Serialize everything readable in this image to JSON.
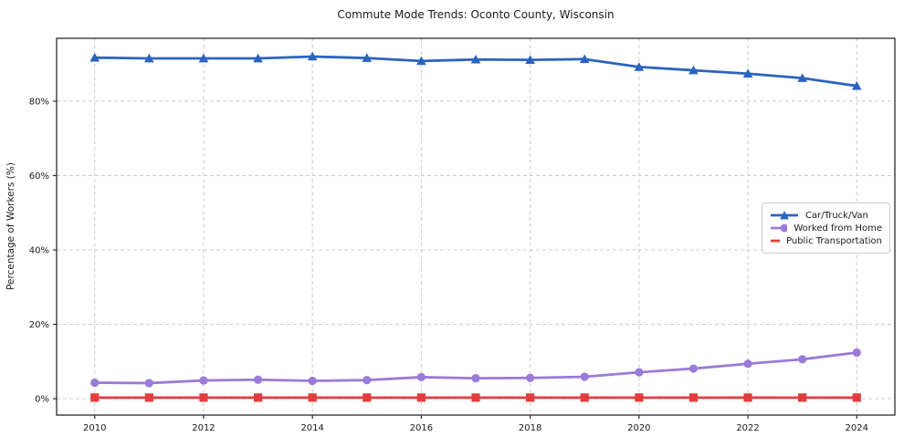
{
  "chart_data": {
    "type": "line",
    "title": "Commute Mode Trends: Oconto County, Wisconsin",
    "xlabel": "",
    "ylabel": "Percentage of Workers (%)",
    "x": [
      2010,
      2011,
      2012,
      2013,
      2014,
      2015,
      2016,
      2017,
      2018,
      2019,
      2020,
      2021,
      2022,
      2023,
      2024
    ],
    "series": [
      {
        "name": "Car/Truck/Van",
        "marker": "triangle-up",
        "color": "#2b63c1",
        "values": [
          91.7,
          91.5,
          91.5,
          91.5,
          92.0,
          91.6,
          90.8,
          91.2,
          91.1,
          91.3,
          89.2,
          88.3,
          87.4,
          86.2,
          84.1
        ]
      },
      {
        "name": "Worked from Home",
        "marker": "circle",
        "color": "#9a7bd8",
        "values": [
          4.3,
          4.2,
          4.9,
          5.1,
          4.8,
          5.0,
          5.8,
          5.5,
          5.6,
          5.9,
          7.1,
          8.1,
          9.4,
          10.6,
          12.4
        ]
      },
      {
        "name": "Public Transportation",
        "marker": "square",
        "color": "#e23d3d",
        "values": [
          0.3,
          0.3,
          0.3,
          0.3,
          0.3,
          0.3,
          0.3,
          0.3,
          0.3,
          0.3,
          0.3,
          0.3,
          0.3,
          0.3,
          0.3
        ]
      }
    ],
    "xticks": [
      2010,
      2012,
      2014,
      2016,
      2018,
      2020,
      2022,
      2024
    ],
    "xtick_labels": [
      "2010",
      "2012",
      "2014",
      "2016",
      "2018",
      "2020",
      "2022",
      "2024"
    ],
    "yticks": [
      0,
      20,
      40,
      60,
      80
    ],
    "ytick_labels": [
      "0%",
      "20%",
      "40%",
      "60%",
      "80%"
    ],
    "xlim": [
      2009.3,
      2024.7
    ],
    "ylim": [
      -4.4,
      96.9
    ],
    "grid": true,
    "grid_style": "dashed",
    "legend_position": "center right",
    "colors": {
      "grid": "#cccccc",
      "spine": "#2b2b2b",
      "text": "#1a1a1a",
      "background": "#ffffff"
    }
  }
}
